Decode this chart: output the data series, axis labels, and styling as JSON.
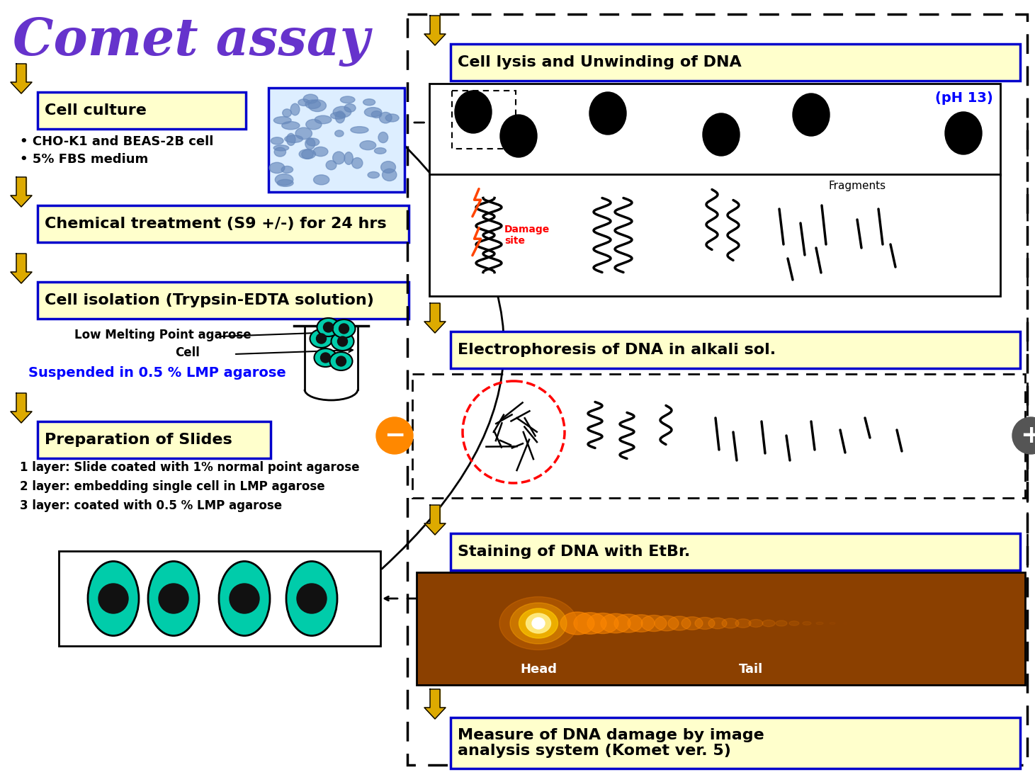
{
  "title": "Comet assay",
  "title_color": "#6633cc",
  "bg_color": "#ffffff",
  "box_bg": "#ffffcc",
  "box_border": "#0000cc",
  "arrow_yellow": "#ddaa00",
  "teal_color": "#00ccaa",
  "orange_color": "#ff8800",
  "comet_bg": "#8b4000",
  "steps_left": [
    "Cell culture",
    "Chemical treatment (S9 +/-) for 24 hrs",
    "Cell isolation (Trypsin-EDTA solution)",
    "Preparation of Slides"
  ],
  "steps_right": [
    "Cell lysis and Unwinding of DNA",
    "Electrophoresis of DNA in alkali sol.",
    "Staining of DNA with EtBr.",
    "Measure of DNA damage by image\nanalysis system (Komet ver. 5)"
  ],
  "cell_culture_bullets": [
    "• CHO-K1 and BEAS-2B cell",
    "• 5% FBS medium"
  ],
  "slide_layers": [
    "1 layer: Slide coated with 1% normal point agarose",
    "2 layer: embedding single cell in LMP agarose",
    "3 layer: coated with 0.5 % LMP agarose"
  ],
  "suspended_text": "Suspended in 0.5 % LMP agarose",
  "lmp_label": "Low Melting Point agarose",
  "cell_label": "Cell",
  "damage_site": "Damage\nsite",
  "fragments_label": "Fragments",
  "ph_label": "(pH 13)",
  "head_label": "Head",
  "tail_label": "Tail"
}
